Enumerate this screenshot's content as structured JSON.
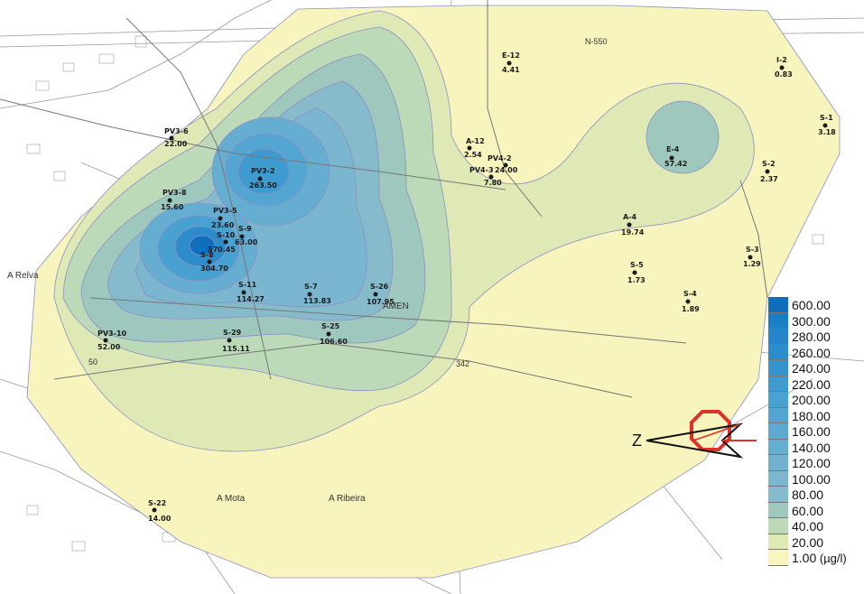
{
  "map": {
    "place_names": [
      {
        "text": "A Relva"
      },
      {
        "text": "AMEN"
      },
      {
        "text": "A Mota"
      },
      {
        "text": "A Ribeira"
      }
    ],
    "road_labels": [
      {
        "text": "N-550"
      },
      {
        "text": "50"
      },
      {
        "text": "342"
      }
    ],
    "wells": [
      {
        "id": "E-12",
        "value": "4.41"
      },
      {
        "id": "I-2",
        "value": "0.83"
      },
      {
        "id": "PV3-6",
        "value": "22.00"
      },
      {
        "id": "S-1",
        "value": "3.18"
      },
      {
        "id": "A-12",
        "value": "2.54"
      },
      {
        "id": "PV4-2",
        "value": "24.00"
      },
      {
        "id": "PV4-3",
        "value": "7.80"
      },
      {
        "id": "E-4",
        "value": "57.42"
      },
      {
        "id": "PV3-2",
        "value": "263.50"
      },
      {
        "id": "S-2",
        "value": "2.37"
      },
      {
        "id": "PV3-8",
        "value": "15.60"
      },
      {
        "id": "PV3-5",
        "value": "23.60"
      },
      {
        "id": "S-9",
        "value": "63.00"
      },
      {
        "id": "S-10",
        "value": "570.45"
      },
      {
        "id": "A-4",
        "value": "19.74"
      },
      {
        "id": "S-8",
        "value": "304.70"
      },
      {
        "id": "S-3",
        "value": "1.29"
      },
      {
        "id": "S-5",
        "value": "1.73"
      },
      {
        "id": "S-11",
        "value": "114.27"
      },
      {
        "id": "S-7",
        "value": "113.83"
      },
      {
        "id": "S-26",
        "value": "107.95"
      },
      {
        "id": "S-4",
        "value": "1.89"
      },
      {
        "id": "PV3-10",
        "value": "52.00"
      },
      {
        "id": "S-29",
        "value": "115.11"
      },
      {
        "id": "S-25",
        "value": "106.60"
      },
      {
        "id": "S-22",
        "value": "14.00"
      }
    ]
  },
  "legend": {
    "unit": "(µg/l)",
    "classes": [
      {
        "label": "600.00",
        "color": "#0f6fbd"
      },
      {
        "label": "300.00",
        "color": "#1b7ec4"
      },
      {
        "label": "280.00",
        "color": "#2486c8"
      },
      {
        "label": "260.00",
        "color": "#2d8dcb"
      },
      {
        "label": "240.00",
        "color": "#3694cd"
      },
      {
        "label": "220.00",
        "color": "#3f9bcf"
      },
      {
        "label": "200.00",
        "color": "#48a1d0"
      },
      {
        "label": "180.00",
        "color": "#52a6d1"
      },
      {
        "label": "160.00",
        "color": "#5caad1"
      },
      {
        "label": "140.00",
        "color": "#66aed1"
      },
      {
        "label": "120.00",
        "color": "#70b2d0"
      },
      {
        "label": "100.00",
        "color": "#7ab6cf"
      },
      {
        "label": "80.00",
        "color": "#86bbcb"
      },
      {
        "label": "60.00",
        "color": "#9ec7bd"
      },
      {
        "label": "40.00",
        "color": "#bcd9b8"
      },
      {
        "label": "20.00",
        "color": "#dfe9b6"
      },
      {
        "label": "1.00",
        "color": "#f7f4bd"
      }
    ]
  },
  "north_arrow": {
    "letter": "Z"
  }
}
